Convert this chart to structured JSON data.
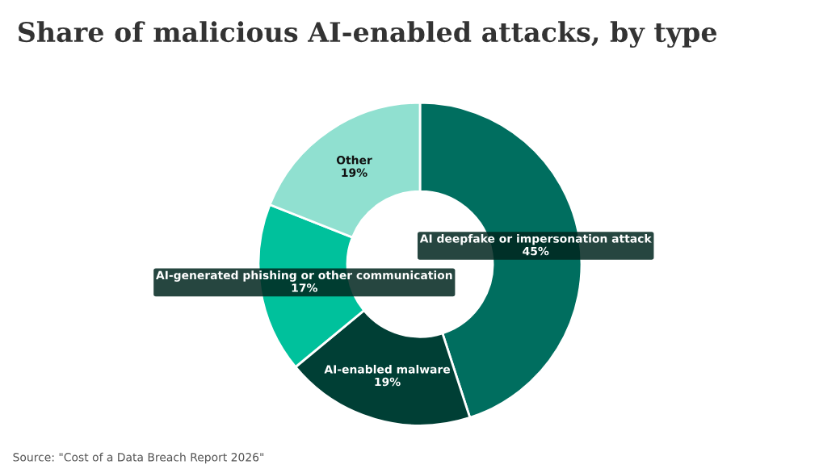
{
  "chart_data": {
    "type": "donut",
    "title": "Share of malicious AI-enabled attacks, by type",
    "categories": [
      "AI deepfake or impersonation attack",
      "AI-enabled malware",
      "AI-generated phishing or other communication",
      "Other"
    ],
    "values": [
      45,
      19,
      17,
      19
    ],
    "value_labels": [
      "45%",
      "19%",
      "17%",
      "19%"
    ],
    "colors": [
      "#006e5f",
      "#003f35",
      "#00c19c",
      "#90e0d0"
    ],
    "annotations": [
      "Source: \"Cost of a Data Breach Report 2026\""
    ],
    "legend": false
  }
}
